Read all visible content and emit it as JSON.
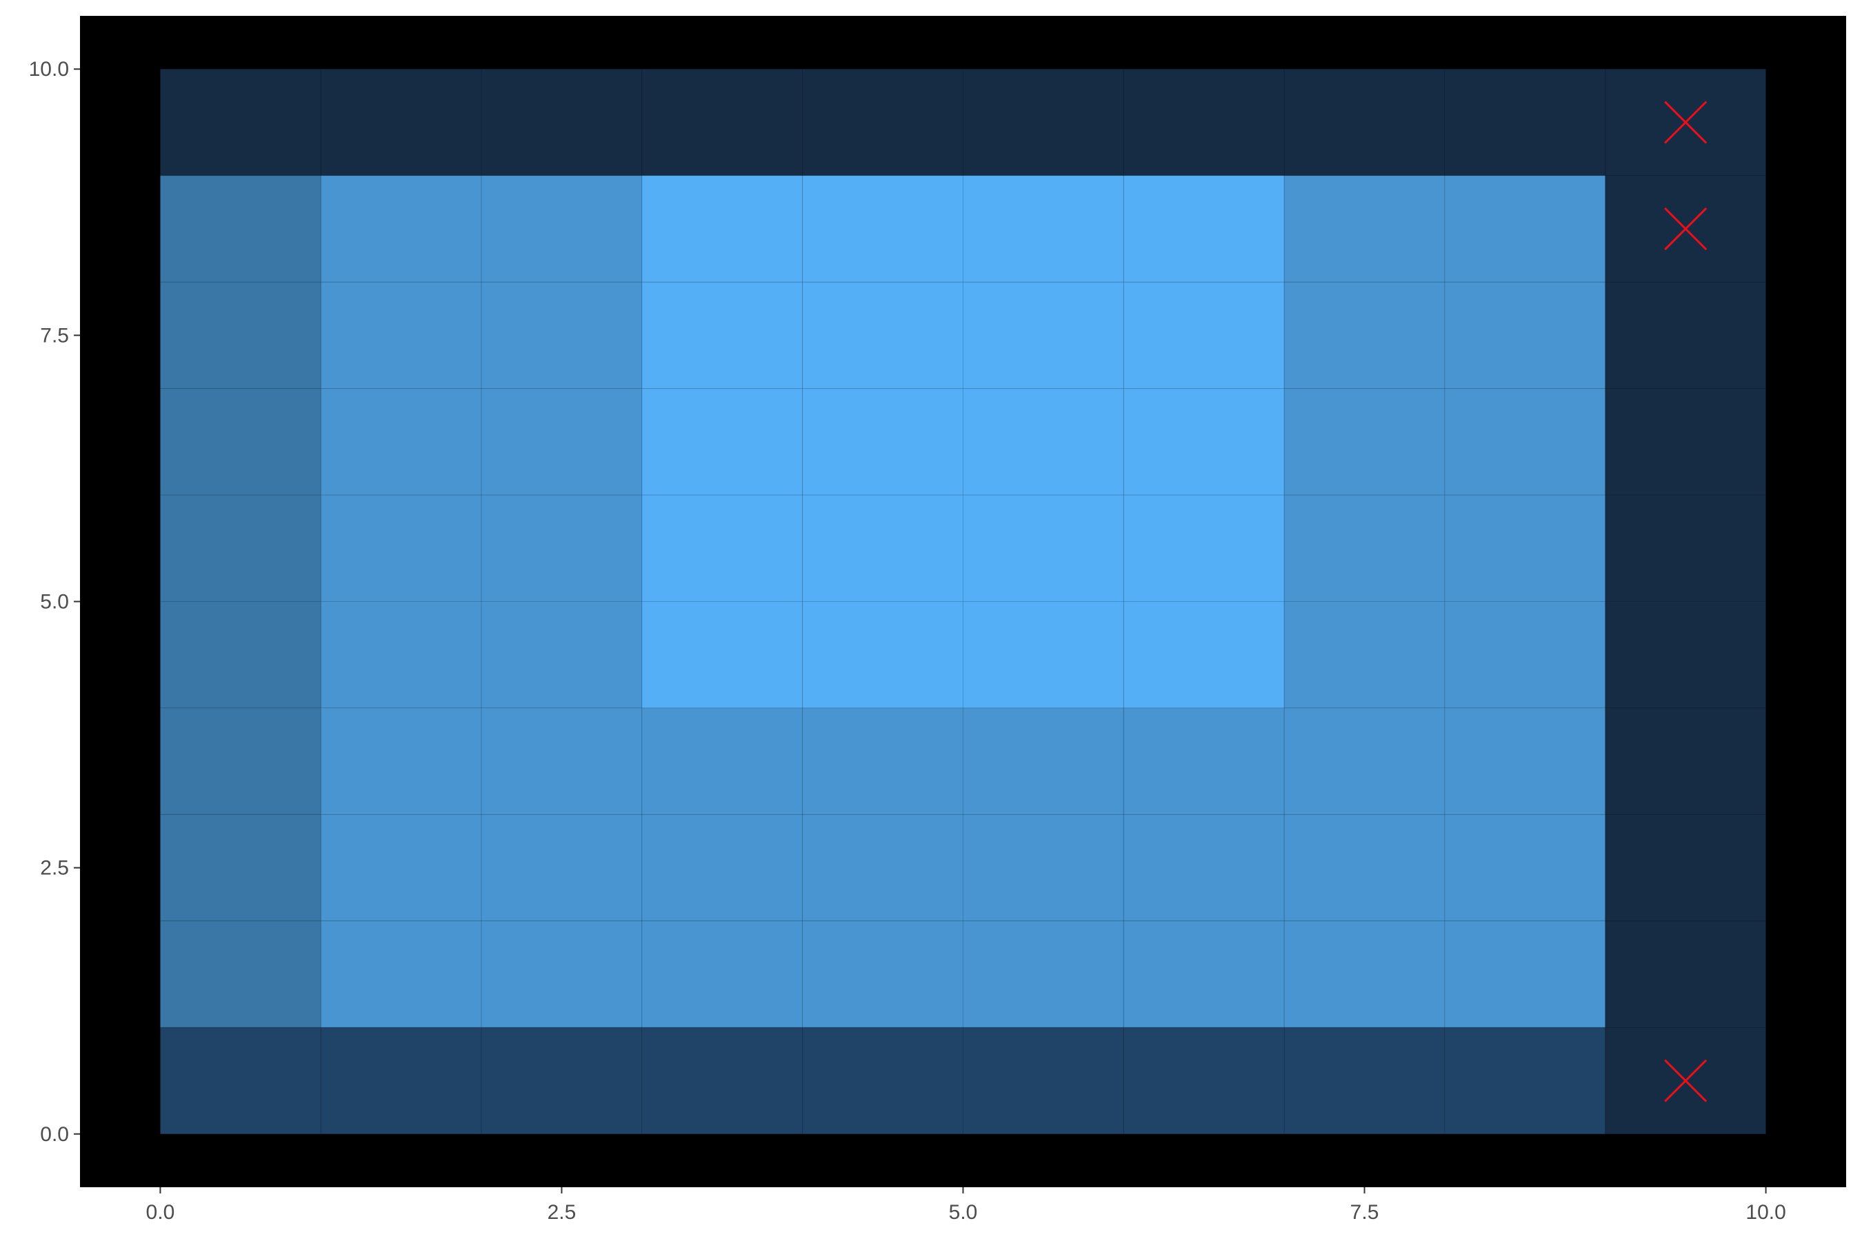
{
  "chart_data": {
    "type": "heatmap",
    "title": "",
    "xlabel": "",
    "ylabel": "",
    "xlim": [
      -0.5,
      10.5
    ],
    "ylim": [
      -0.5,
      10.5
    ],
    "x_ticks": [
      "0.0",
      "2.5",
      "5.0",
      "7.5",
      "10.0"
    ],
    "y_ticks": [
      "0.0",
      "2.5",
      "5.0",
      "7.5",
      "10.0"
    ],
    "x_tick_values": [
      0,
      2.5,
      5,
      7.5,
      10
    ],
    "y_tick_values": [
      0,
      2.5,
      5,
      7.5,
      10
    ],
    "grid_extent": {
      "x": [
        0,
        10
      ],
      "y": [
        0,
        10
      ]
    },
    "cell_size": 1,
    "rows_top_to_bottom": [
      [
        0,
        0,
        0,
        0,
        0,
        0,
        0,
        0,
        0,
        0
      ],
      [
        2,
        3,
        3,
        4,
        4,
        4,
        4,
        3,
        3,
        0
      ],
      [
        2,
        3,
        3,
        4,
        4,
        4,
        4,
        3,
        3,
        0
      ],
      [
        2,
        3,
        3,
        4,
        4,
        4,
        4,
        3,
        3,
        0
      ],
      [
        2,
        3,
        3,
        4,
        4,
        4,
        4,
        3,
        3,
        0
      ],
      [
        2,
        3,
        3,
        4,
        4,
        4,
        4,
        3,
        3,
        0
      ],
      [
        2,
        3,
        3,
        3,
        3,
        3,
        3,
        3,
        3,
        0
      ],
      [
        2,
        3,
        3,
        3,
        3,
        3,
        3,
        3,
        3,
        0
      ],
      [
        2,
        3,
        3,
        3,
        3,
        3,
        3,
        3,
        3,
        0
      ],
      [
        1,
        1,
        1,
        1,
        1,
        1,
        1,
        1,
        1,
        0
      ]
    ],
    "level_colors": [
      "#162c45",
      "#204468",
      "#3a77a6",
      "#4895d1",
      "#54aff7"
    ],
    "panel_background": "#000000",
    "grid": false,
    "legend": "none",
    "markers": {
      "symbol": "x",
      "color": "#e8101a",
      "points": [
        {
          "x": 9.5,
          "y": 9.5
        },
        {
          "x": 9.5,
          "y": 8.5
        },
        {
          "x": 9.5,
          "y": 0.5
        }
      ]
    }
  }
}
